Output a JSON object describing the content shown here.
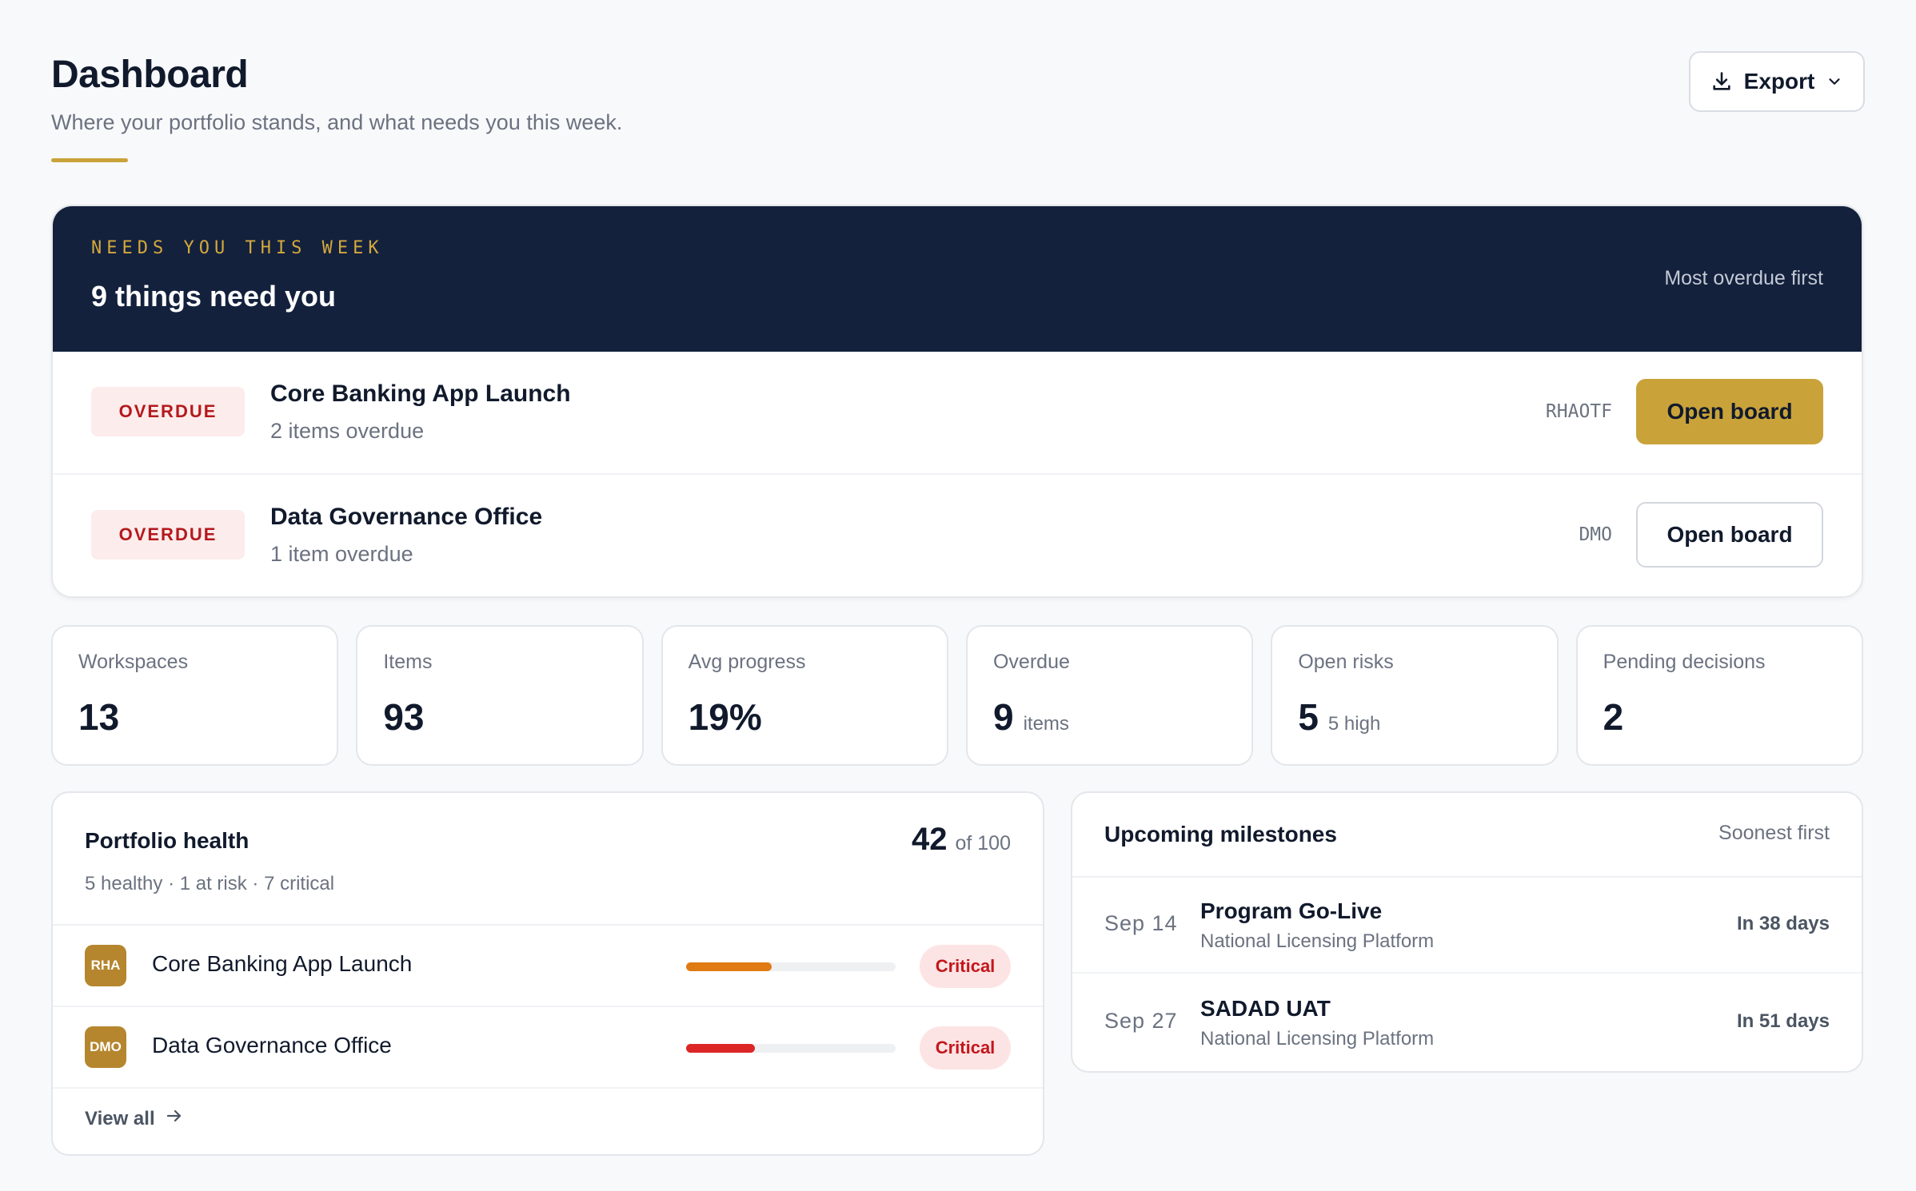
{
  "header": {
    "title": "Dashboard",
    "subtitle": "Where your portfolio stands, and what needs you this week.",
    "export_label": "Export"
  },
  "needs": {
    "eyebrow": "NEEDS YOU THIS WEEK",
    "title": "9 things need you",
    "sort_label": "Most overdue first",
    "rows": [
      {
        "badge": "OVERDUE",
        "name": "Core Banking App Launch",
        "detail": "2 items overdue",
        "code": "RHAOTF",
        "action": "Open board",
        "style": "primary"
      },
      {
        "badge": "OVERDUE",
        "name": "Data Governance Office",
        "detail": "1 item overdue",
        "code": "DMO",
        "action": "Open board",
        "style": "secondary"
      }
    ]
  },
  "stats": [
    {
      "label": "Workspaces",
      "value": "13",
      "unit": ""
    },
    {
      "label": "Items",
      "value": "93",
      "unit": ""
    },
    {
      "label": "Avg progress",
      "value": "19%",
      "unit": ""
    },
    {
      "label": "Overdue",
      "value": "9",
      "unit": "items"
    },
    {
      "label": "Open risks",
      "value": "5",
      "unit": "5 high"
    },
    {
      "label": "Pending decisions",
      "value": "2",
      "unit": ""
    }
  ],
  "health": {
    "title": "Portfolio health",
    "summary": "5 healthy · 1 at risk · 7 critical",
    "score": "42",
    "score_of": "of 100",
    "rows": [
      {
        "avatar": "RHA",
        "name": "Core Banking App Launch",
        "progress": 0.41,
        "bar_color": "#e07b14",
        "status": "Critical"
      },
      {
        "avatar": "DMO",
        "name": "Data Governance Office",
        "progress": 0.33,
        "bar_color": "#dc2626",
        "status": "Critical"
      }
    ],
    "view_all_label": "View all"
  },
  "milestones": {
    "title": "Upcoming milestones",
    "sort_label": "Soonest first",
    "rows": [
      {
        "date": "Sep 14",
        "name": "Program Go-Live",
        "program": "National Licensing Platform",
        "due": "In 38 days"
      },
      {
        "date": "Sep 27",
        "name": "SADAD UAT",
        "program": "National Licensing Platform",
        "due": "In 51 days"
      }
    ]
  },
  "colors": {
    "accent": "#c9a33a",
    "navy": "#13213d",
    "critical": "#c4161c"
  }
}
